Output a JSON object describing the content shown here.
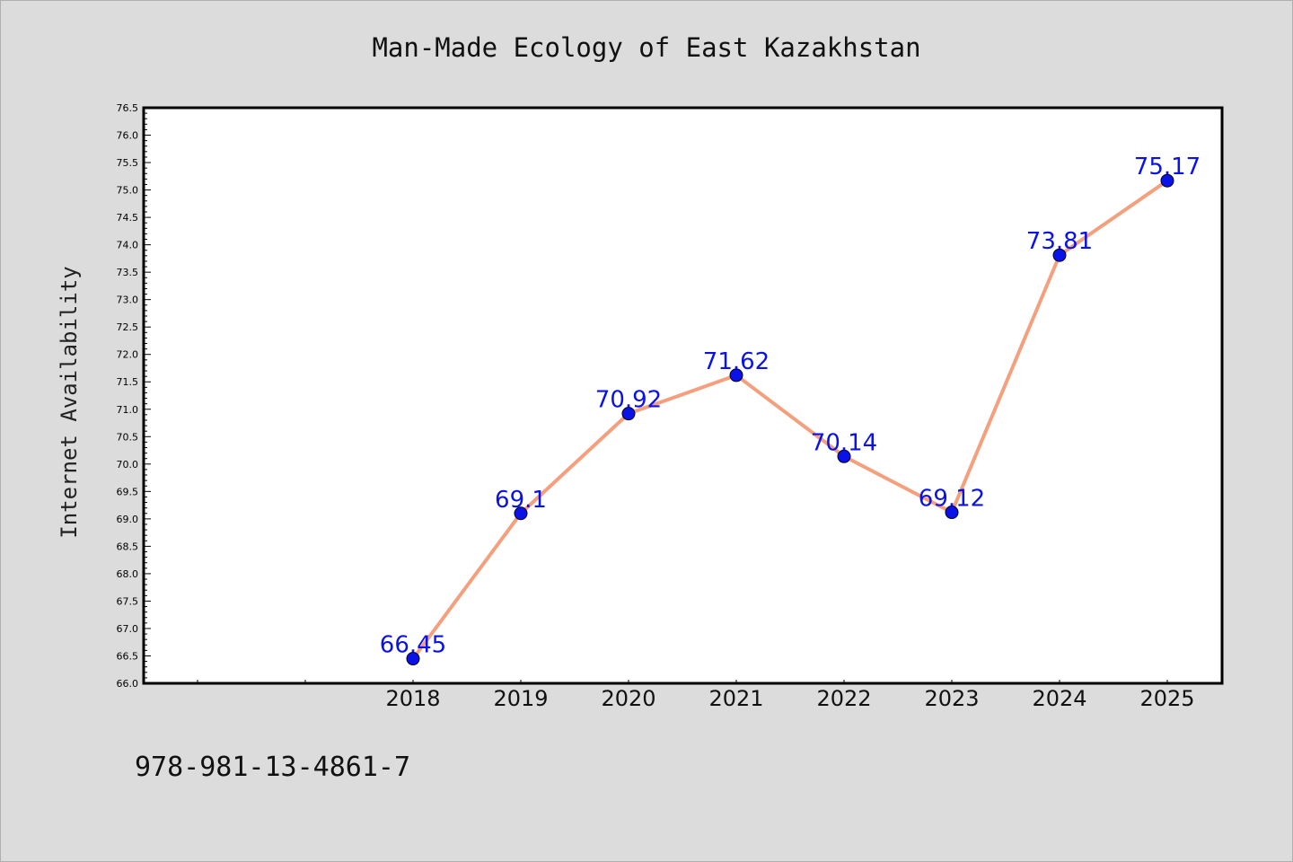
{
  "chart_data": {
    "type": "line",
    "title": "Man-Made Ecology of East Kazakhstan",
    "xlabel": "",
    "ylabel": "Internet Availability",
    "categories": [
      "",
      "",
      "2018",
      "2019",
      "2020",
      "2021",
      "2022",
      "2023",
      "2024",
      "2025"
    ],
    "series": [
      {
        "x": [
          "2018",
          "2019",
          "2020",
          "2021",
          "2022",
          "2023",
          "2024",
          "2025"
        ],
        "values": [
          66.45,
          69.1,
          70.92,
          71.62,
          70.14,
          69.12,
          73.81,
          75.17
        ],
        "labels": [
          "66.45",
          "69.1",
          "70.92",
          "71.62",
          "70.14",
          "69.12",
          "73.81",
          "75.17"
        ]
      }
    ],
    "ylim": [
      66.0,
      76.5
    ],
    "yticks": [
      "66.0",
      "66.5",
      "67.0",
      "67.5",
      "68.0",
      "68.5",
      "69.0",
      "69.5",
      "70.0",
      "70.5",
      "71.0",
      "71.5",
      "72.0",
      "72.5",
      "73.0",
      "73.5",
      "74.0",
      "74.5",
      "75.0",
      "75.5",
      "76.0",
      "76.5"
    ],
    "grid": false,
    "colors": {
      "line": "#f4a07e",
      "marker": "#0a12e8",
      "label": "#0a12e8",
      "background": "#dcdcdc",
      "plot_background": "#ffffff"
    }
  },
  "footer": {
    "text": "978-981-13-4861-7"
  }
}
